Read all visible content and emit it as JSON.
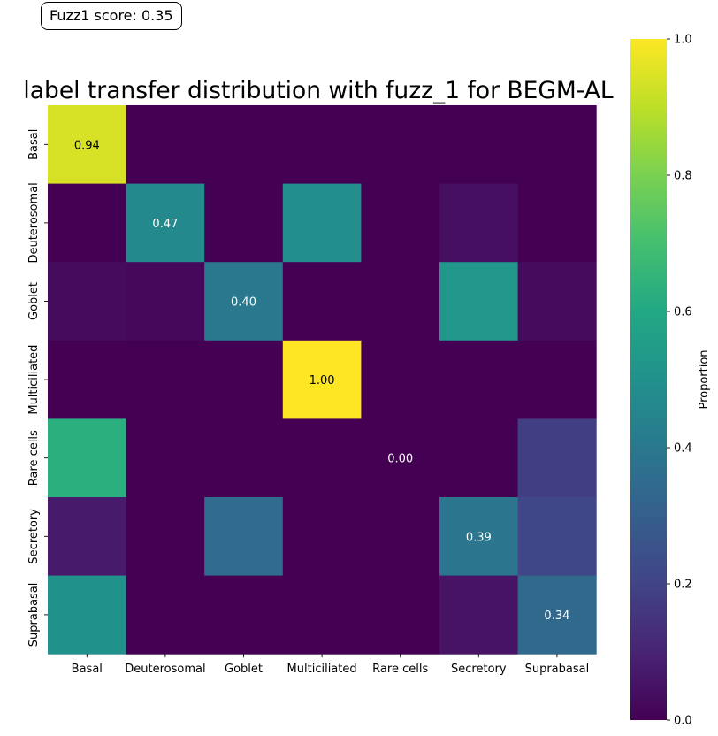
{
  "score_badge": "Fuzz1 score: 0.35",
  "chart_data": {
    "type": "heatmap",
    "title": "label transfer distribution with fuzz_1 for BEGM-AL",
    "xlabel": "",
    "ylabel": "",
    "colormap": "viridis",
    "colorbar": {
      "label": "Proportion",
      "range": [
        0.0,
        1.0
      ],
      "ticks": [
        "0.0",
        "0.2",
        "0.4",
        "0.6",
        "0.8",
        "1.0"
      ]
    },
    "x_categories": [
      "Basal",
      "Deuterosomal",
      "Goblet",
      "Multiciliated",
      "Rare cells",
      "Secretory",
      "Suprabasal"
    ],
    "y_categories": [
      "Basal",
      "Deuterosomal",
      "Goblet",
      "Multiciliated",
      "Rare cells",
      "Secretory",
      "Suprabasal"
    ],
    "values": [
      [
        0.94,
        0.0,
        0.0,
        0.0,
        0.0,
        0.0,
        0.0
      ],
      [
        0.0,
        0.47,
        0.0,
        0.49,
        0.0,
        0.04,
        0.0
      ],
      [
        0.03,
        0.02,
        0.4,
        0.0,
        0.0,
        0.52,
        0.03
      ],
      [
        0.0,
        0.0,
        0.0,
        1.0,
        0.0,
        0.0,
        0.0
      ],
      [
        0.63,
        0.0,
        0.0,
        0.0,
        0.0,
        0.0,
        0.18
      ],
      [
        0.07,
        0.0,
        0.35,
        0.0,
        0.0,
        0.39,
        0.21
      ],
      [
        0.5,
        0.0,
        0.0,
        0.0,
        0.0,
        0.05,
        0.34
      ]
    ],
    "annotations": [
      {
        "row": 0,
        "col": 0,
        "text": "0.94"
      },
      {
        "row": 1,
        "col": 1,
        "text": "0.47"
      },
      {
        "row": 2,
        "col": 2,
        "text": "0.40"
      },
      {
        "row": 3,
        "col": 3,
        "text": "1.00"
      },
      {
        "row": 4,
        "col": 4,
        "text": "0.00"
      },
      {
        "row": 5,
        "col": 5,
        "text": "0.39"
      },
      {
        "row": 6,
        "col": 6,
        "text": "0.34"
      }
    ]
  }
}
